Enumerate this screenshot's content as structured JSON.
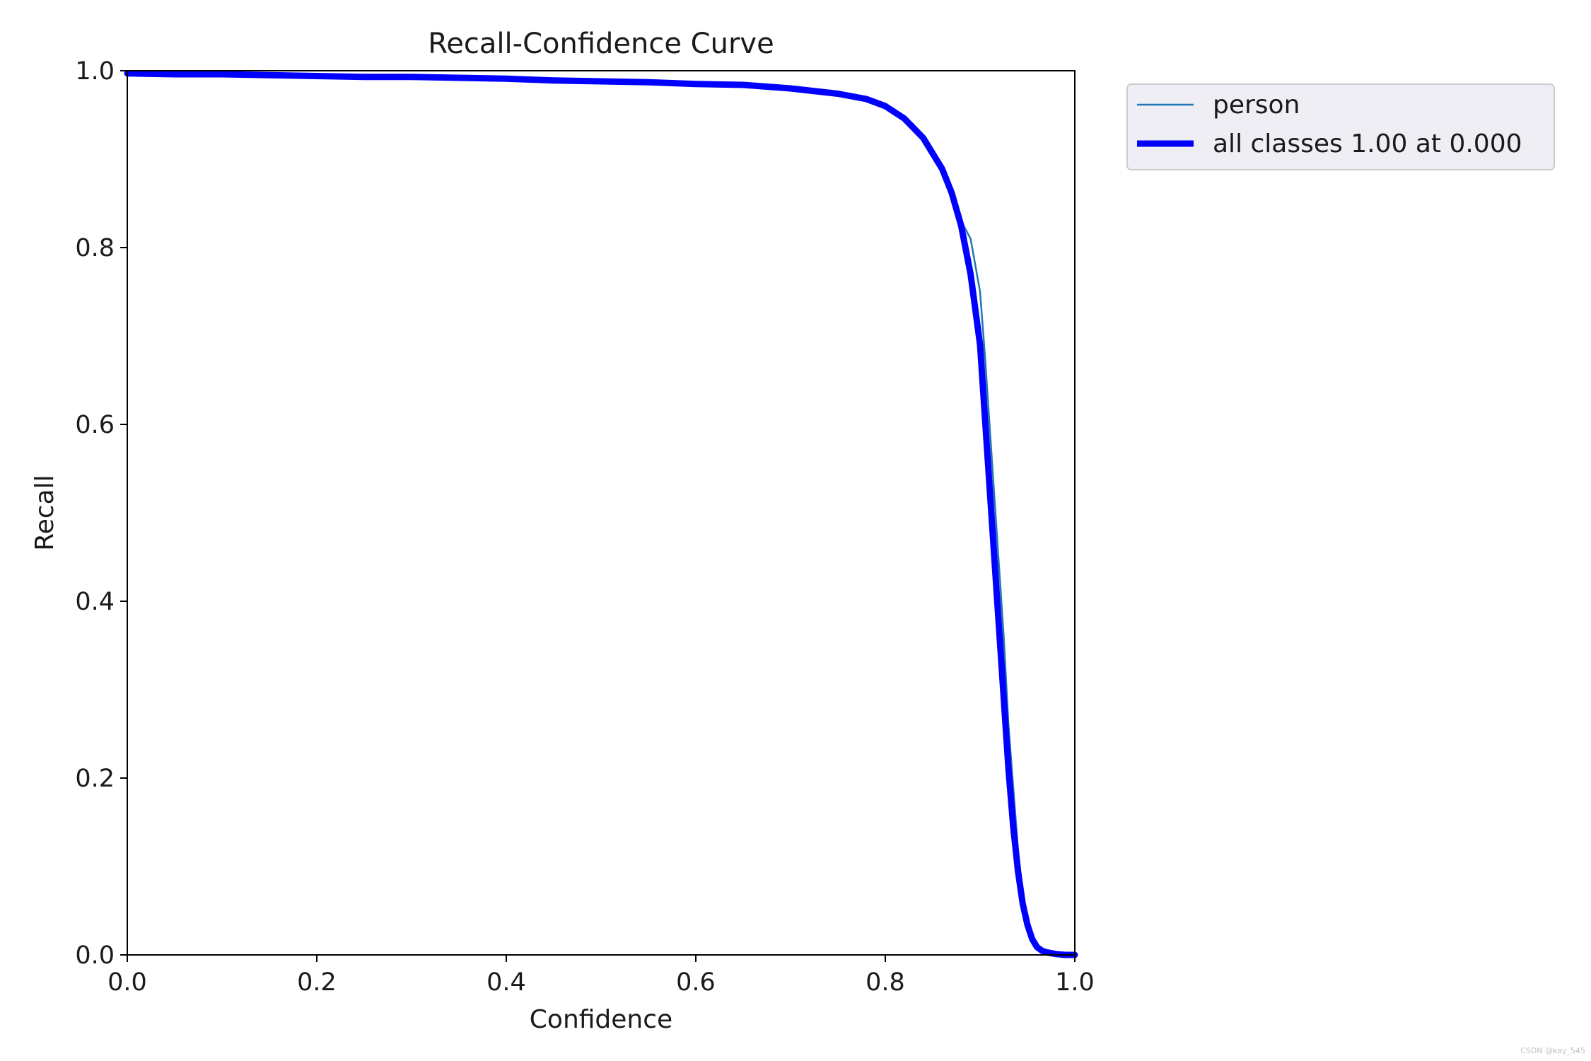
{
  "chart_data": {
    "type": "line",
    "title": "Recall-Confidence Curve",
    "xlabel": "Confidence",
    "ylabel": "Recall",
    "xlim": [
      0.0,
      1.0
    ],
    "ylim": [
      0.0,
      1.0
    ],
    "xticks": [
      "0.0",
      "0.2",
      "0.4",
      "0.6",
      "0.8",
      "1.0"
    ],
    "yticks": [
      "0.0",
      "0.2",
      "0.4",
      "0.6",
      "0.8",
      "1.0"
    ],
    "grid": false,
    "legend_position": "outside-top-right",
    "series": [
      {
        "name": "person",
        "color": "#1f77b4",
        "x": [
          0.0,
          0.05,
          0.1,
          0.15,
          0.2,
          0.25,
          0.3,
          0.35,
          0.4,
          0.45,
          0.5,
          0.55,
          0.6,
          0.65,
          0.7,
          0.75,
          0.78,
          0.8,
          0.82,
          0.84,
          0.86,
          0.87,
          0.88,
          0.89,
          0.9,
          0.905,
          0.91,
          0.915,
          0.92,
          0.925,
          0.93,
          0.935,
          0.94,
          0.945,
          0.95,
          0.955,
          0.96,
          0.965,
          0.97,
          0.98,
          0.99,
          1.0
        ],
        "y": [
          0.997,
          0.996,
          0.996,
          0.995,
          0.994,
          0.993,
          0.993,
          0.992,
          0.991,
          0.989,
          0.988,
          0.987,
          0.985,
          0.984,
          0.98,
          0.974,
          0.968,
          0.96,
          0.946,
          0.924,
          0.889,
          0.862,
          0.83,
          0.81,
          0.75,
          0.68,
          0.6,
          0.52,
          0.44,
          0.36,
          0.26,
          0.19,
          0.12,
          0.07,
          0.04,
          0.02,
          0.008,
          0.004,
          0.002,
          0.001,
          0.0,
          0.0
        ]
      },
      {
        "name": "all classes 1.00 at 0.000",
        "color": "#0000ff",
        "x": [
          0.0,
          0.05,
          0.1,
          0.15,
          0.2,
          0.25,
          0.3,
          0.35,
          0.4,
          0.45,
          0.5,
          0.55,
          0.6,
          0.65,
          0.7,
          0.75,
          0.78,
          0.8,
          0.82,
          0.84,
          0.86,
          0.87,
          0.88,
          0.89,
          0.9,
          0.905,
          0.91,
          0.915,
          0.92,
          0.925,
          0.93,
          0.935,
          0.94,
          0.945,
          0.95,
          0.955,
          0.96,
          0.965,
          0.97,
          0.98,
          0.99,
          1.0
        ],
        "y": [
          0.997,
          0.996,
          0.996,
          0.995,
          0.994,
          0.993,
          0.993,
          0.992,
          0.991,
          0.989,
          0.988,
          0.987,
          0.985,
          0.984,
          0.98,
          0.974,
          0.968,
          0.96,
          0.946,
          0.924,
          0.889,
          0.862,
          0.825,
          0.77,
          0.69,
          0.61,
          0.53,
          0.45,
          0.37,
          0.29,
          0.21,
          0.145,
          0.095,
          0.058,
          0.034,
          0.018,
          0.009,
          0.005,
          0.003,
          0.001,
          0.0,
          0.0
        ]
      }
    ]
  },
  "watermark": "CSDN @kay_545"
}
